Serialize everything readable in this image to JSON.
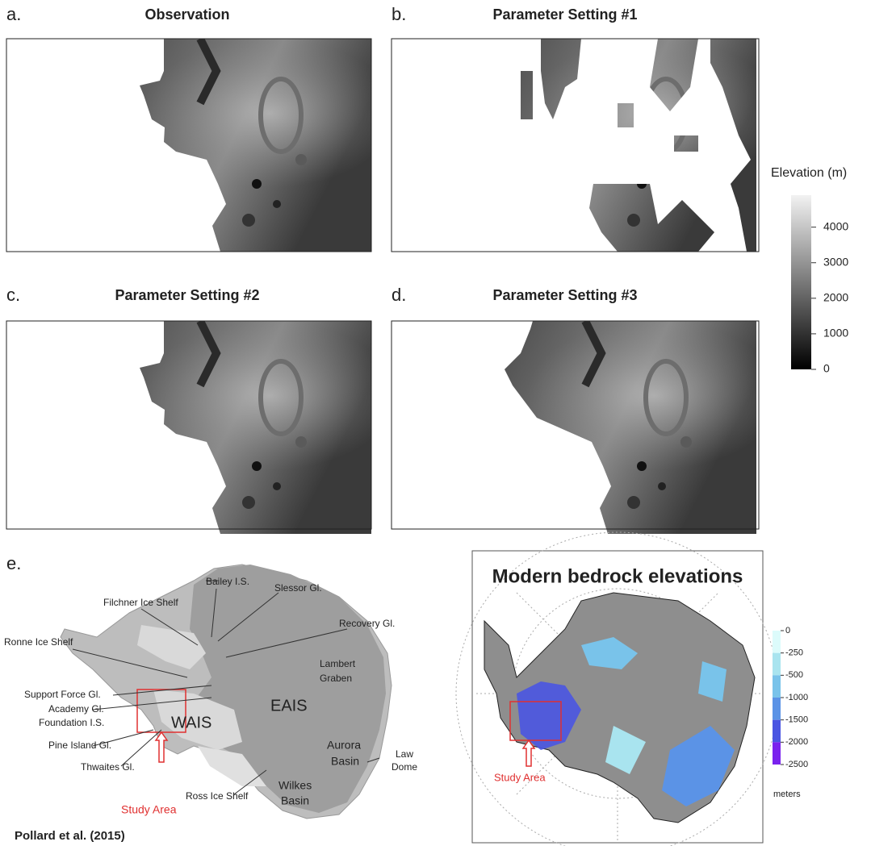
{
  "panels": [
    {
      "letter": "a.",
      "title": "Observation"
    },
    {
      "letter": "b.",
      "title": "Parameter Setting #1"
    },
    {
      "letter": "c.",
      "title": "Parameter Setting #2"
    },
    {
      "letter": "d.",
      "title": "Parameter Setting #3"
    }
  ],
  "elevation_colorbar": {
    "title": "Elevation (m)",
    "lim": [
      0,
      4900
    ],
    "ticks": [
      0,
      1000,
      2000,
      3000,
      4000
    ]
  },
  "panel_e": {
    "letter": "e.",
    "labels": [
      "Bailey I.S.",
      "Slessor Gl.",
      "Filchner Ice Shelf",
      "Recovery Gl.",
      "Ronne Ice Shelf",
      "Lambert",
      "Graben",
      "Support Force Gl.",
      "Academy Gl.",
      "Foundation I.S.",
      "WAIS",
      "EAIS",
      "Pine Island Gl.",
      "Thwaites Gl.",
      "Aurora",
      "Basin",
      "Law",
      "Dome",
      "Ross Ice Shelf",
      "Wilkes",
      "Basin"
    ],
    "study_area": "Study Area",
    "citation": "Pollard et al. (2015)"
  },
  "bedrock": {
    "title": "Modern bedrock elevations",
    "ticks": [
      0,
      -250,
      -500,
      -1000,
      -1500,
      -2000,
      -2500
    ],
    "colors": [
      "#dcfbfb",
      "#a9e4ef",
      "#79c3ea",
      "#5b93e6",
      "#4a55e2",
      "#7a22ee"
    ],
    "unit": "meters",
    "study_area": "Study Area"
  }
}
